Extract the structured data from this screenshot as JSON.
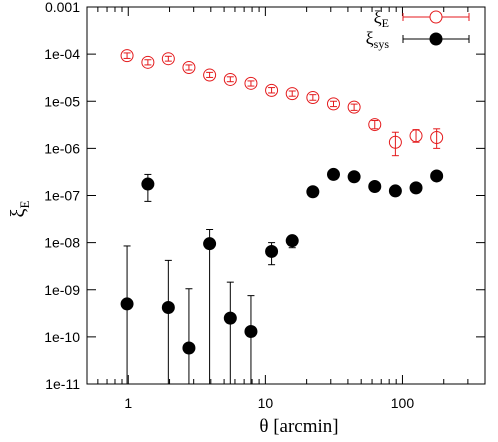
{
  "chart_data": {
    "type": "scatter",
    "xlabel": "θ [arcmin]",
    "ylabel": {
      "base": "ξ",
      "sub": "E"
    },
    "x_scale": "log",
    "y_scale": "log",
    "xlim": [
      0.5,
      400
    ],
    "ylim": [
      1e-11,
      0.001
    ],
    "x_ticks": [
      {
        "value": 1,
        "label": "1"
      },
      {
        "value": 10,
        "label": "10"
      },
      {
        "value": 100,
        "label": "100"
      }
    ],
    "y_ticks": [
      {
        "value": 0.001,
        "label": "0.001"
      },
      {
        "value": 0.0001,
        "label": "1e-04"
      },
      {
        "value": 1e-05,
        "label": "1e-05"
      },
      {
        "value": 1e-06,
        "label": "1e-06"
      },
      {
        "value": 1e-07,
        "label": "1e-07"
      },
      {
        "value": 1e-08,
        "label": "1e-08"
      },
      {
        "value": 1e-09,
        "label": "1e-09"
      },
      {
        "value": 1e-10,
        "label": "1e-10"
      },
      {
        "value": 1e-11,
        "label": "1e-11"
      }
    ],
    "grid": false,
    "legend_position": "top-right",
    "series": [
      {
        "legend": {
          "base": "ξ",
          "sub": "E"
        },
        "marker": "open-circle",
        "color": "#e41a1c",
        "points": [
          {
            "x": 0.98,
            "y": 9.3e-05,
            "ylo": 8.1e-05,
            "yhi": 0.000106
          },
          {
            "x": 1.39,
            "y": 6.7e-05,
            "ylo": 5.9e-05,
            "yhi": 7.6e-05
          },
          {
            "x": 1.96,
            "y": 8e-05,
            "ylo": 7.1e-05,
            "yhi": 9e-05
          },
          {
            "x": 2.77,
            "y": 5.2e-05,
            "ylo": 4.6e-05,
            "yhi": 5.9e-05
          },
          {
            "x": 3.92,
            "y": 3.6e-05,
            "ylo": 3.2e-05,
            "yhi": 4.1e-05
          },
          {
            "x": 5.55,
            "y": 2.9e-05,
            "ylo": 2.6e-05,
            "yhi": 3.3e-05
          },
          {
            "x": 7.85,
            "y": 2.4e-05,
            "ylo": 2.1e-05,
            "yhi": 2.7e-05
          },
          {
            "x": 11.1,
            "y": 1.7e-05,
            "ylo": 1.5e-05,
            "yhi": 1.95e-05
          },
          {
            "x": 15.7,
            "y": 1.45e-05,
            "ylo": 1.28e-05,
            "yhi": 1.65e-05
          },
          {
            "x": 22.2,
            "y": 1.2e-05,
            "ylo": 1.05e-05,
            "yhi": 1.38e-05
          },
          {
            "x": 31.4,
            "y": 8.8e-06,
            "ylo": 7.7e-06,
            "yhi": 1e-05
          },
          {
            "x": 44.4,
            "y": 7.5e-06,
            "ylo": 6.4e-06,
            "yhi": 8.7e-06
          },
          {
            "x": 62.8,
            "y": 3.2e-06,
            "ylo": 2.6e-06,
            "yhi": 3.9e-06
          },
          {
            "x": 88.8,
            "y": 1.35e-06,
            "ylo": 7e-07,
            "yhi": 2.2e-06
          },
          {
            "x": 125.6,
            "y": 1.85e-06,
            "ylo": 1.35e-06,
            "yhi": 2.5e-06
          },
          {
            "x": 177.6,
            "y": 1.7e-06,
            "ylo": 1e-06,
            "yhi": 2.6e-06
          }
        ]
      },
      {
        "legend": {
          "base": "ξ",
          "sub": "sys"
        },
        "marker": "filled-circle",
        "color": "#000000",
        "points": [
          {
            "x": 0.98,
            "y": 5e-10,
            "ylo": 1e-11,
            "yhi": 8.5e-09
          },
          {
            "x": 1.39,
            "y": 1.75e-07,
            "ylo": 7.5e-08,
            "yhi": 2.8e-07
          },
          {
            "x": 1.96,
            "y": 4.2e-10,
            "ylo": 1e-11,
            "yhi": 4.2e-09
          },
          {
            "x": 2.77,
            "y": 5.8e-11,
            "ylo": 1e-11,
            "yhi": 1.05e-09
          },
          {
            "x": 3.92,
            "y": 9.5e-09,
            "ylo": 1e-11,
            "yhi": 1.9e-08
          },
          {
            "x": 5.55,
            "y": 2.5e-10,
            "ylo": 1e-11,
            "yhi": 1.45e-09
          },
          {
            "x": 7.85,
            "y": 1.3e-10,
            "ylo": 1e-11,
            "yhi": 7.5e-10
          },
          {
            "x": 11.1,
            "y": 6.5e-09,
            "ylo": 3.4e-09,
            "yhi": 1e-08
          },
          {
            "x": 15.7,
            "y": 1.1e-08,
            "ylo": 7.8e-09,
            "yhi": 1.4e-08
          },
          {
            "x": 22.2,
            "y": 1.2e-07,
            "ylo": 1.2e-07,
            "yhi": 1.2e-07
          },
          {
            "x": 31.4,
            "y": 2.8e-07,
            "ylo": 2.8e-07,
            "yhi": 2.8e-07
          },
          {
            "x": 44.4,
            "y": 2.5e-07,
            "ylo": 2.5e-07,
            "yhi": 2.5e-07
          },
          {
            "x": 62.8,
            "y": 1.55e-07,
            "ylo": 1.55e-07,
            "yhi": 1.55e-07
          },
          {
            "x": 88.8,
            "y": 1.25e-07,
            "ylo": 1.25e-07,
            "yhi": 1.25e-07
          },
          {
            "x": 125.6,
            "y": 1.45e-07,
            "ylo": 1.45e-07,
            "yhi": 1.45e-07
          },
          {
            "x": 177.6,
            "y": 2.6e-07,
            "ylo": 2.6e-07,
            "yhi": 2.6e-07
          }
        ]
      }
    ]
  }
}
